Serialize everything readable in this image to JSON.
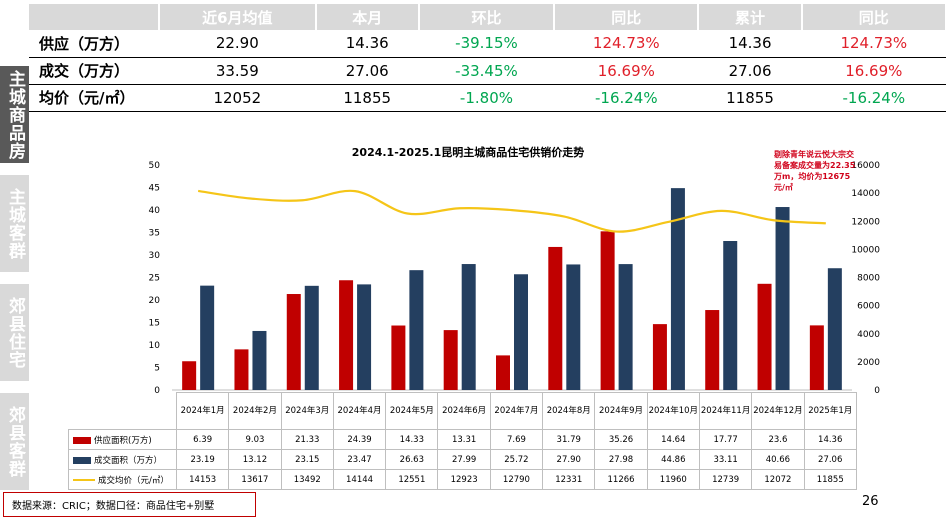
{
  "colors": {
    "supply": "#c00000",
    "deal": "#243f60",
    "price": "#f5c518",
    "neg": "#00a650",
    "pos": "#e0202a",
    "tab_active": "#595959",
    "tab_inactive": "#d9d9d9"
  },
  "side_tabs": [
    {
      "label": "主城商品房",
      "active": true
    },
    {
      "label": "主城客群",
      "active": false
    },
    {
      "label": "郊县住宅",
      "active": false
    },
    {
      "label": "郊县客群",
      "active": false
    }
  ],
  "summary": {
    "headers": [
      "",
      "近6月均值",
      "本月",
      "环比",
      "同比",
      "累计",
      "同比"
    ],
    "rows": [
      {
        "label": "供应（万方）",
        "cells": [
          "22.90",
          "14.36",
          "-39.15%",
          "124.73%",
          "14.36",
          "124.73%"
        ],
        "tones": [
          "",
          "",
          "neg",
          "pos",
          "",
          "pos"
        ]
      },
      {
        "label": "成交（万方）",
        "cells": [
          "33.59",
          "27.06",
          "-33.45%",
          "16.69%",
          "27.06",
          "16.69%"
        ],
        "tones": [
          "",
          "",
          "neg",
          "pos",
          "",
          "pos"
        ]
      },
      {
        "label": "均价（元/㎡）",
        "cells": [
          "12052",
          "11855",
          "-1.80%",
          "-16.24%",
          "11855",
          "-16.24%"
        ],
        "tones": [
          "",
          "",
          "neg",
          "neg",
          "",
          "neg"
        ]
      }
    ]
  },
  "chart_data": {
    "type": "bar",
    "title": "2024.1-2025.1昆明主城商品住宅供销价走势",
    "categories": [
      "2024年1月",
      "2024年2月",
      "2024年3月",
      "2024年4月",
      "2024年5月",
      "2024年6月",
      "2024年7月",
      "2024年8月",
      "2024年9月",
      "2024年10月",
      "2024年11月",
      "2024年12月",
      "2025年1月"
    ],
    "series": [
      {
        "name": "供应面积(万方)",
        "type": "bar",
        "axis": "left",
        "values": [
          6.39,
          9.03,
          21.33,
          24.39,
          14.33,
          13.31,
          7.69,
          31.79,
          35.26,
          14.64,
          17.77,
          23.6,
          14.36
        ],
        "display": [
          "6.39",
          "9.03",
          "21.33",
          "24.39",
          "14.33",
          "13.31",
          "7.69",
          "31.79",
          "35.26",
          "14.64",
          "17.77",
          "23.6",
          "14.36"
        ]
      },
      {
        "name": "成交面积（万方）",
        "type": "bar",
        "axis": "left",
        "values": [
          23.19,
          13.12,
          23.15,
          23.47,
          26.63,
          27.99,
          25.72,
          27.9,
          27.98,
          44.86,
          33.11,
          40.66,
          27.06
        ],
        "display": [
          "23.19",
          "13.12",
          "23.15",
          "23.47",
          "26.63",
          "27.99",
          "25.72",
          "27.90",
          "27.98",
          "44.86",
          "33.11",
          "40.66",
          "27.06"
        ]
      },
      {
        "name": "成交均价（元/㎡）",
        "type": "line",
        "axis": "right",
        "values": [
          14153,
          13617,
          13492,
          14144,
          12551,
          12923,
          12790,
          12331,
          11266,
          11960,
          12739,
          12072,
          11855
        ],
        "display": [
          "14153",
          "13617",
          "13492",
          "14144",
          "12551",
          "12923",
          "12790",
          "12331",
          "11266",
          "11960",
          "12739",
          "12072",
          "11855"
        ]
      }
    ],
    "ylim_left": [
      0,
      50
    ],
    "yticks_left": [
      0,
      5,
      10,
      15,
      20,
      25,
      30,
      35,
      40,
      45,
      50
    ],
    "ylim_right": [
      0,
      16000
    ],
    "yticks_right": [
      0,
      2000,
      4000,
      6000,
      8000,
      10000,
      12000,
      14000,
      16000
    ],
    "annotation": "剔除青年说云悦大宗交易备案成交量为22.35万m，均价为12675元/㎡"
  },
  "footer": {
    "source": "数据来源：CRIC；数据口径：商品住宅+别墅",
    "page": "26"
  }
}
